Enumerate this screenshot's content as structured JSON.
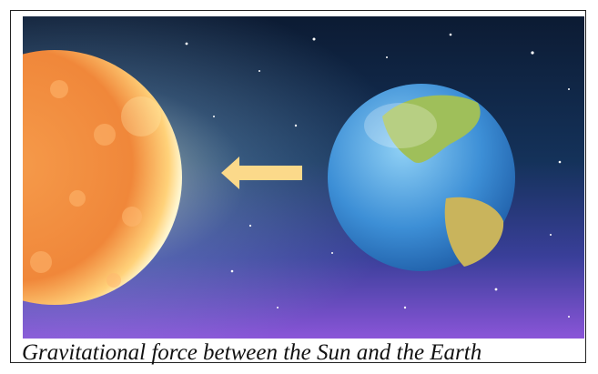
{
  "caption": "Gravitational force between the Sun and the Earth"
}
